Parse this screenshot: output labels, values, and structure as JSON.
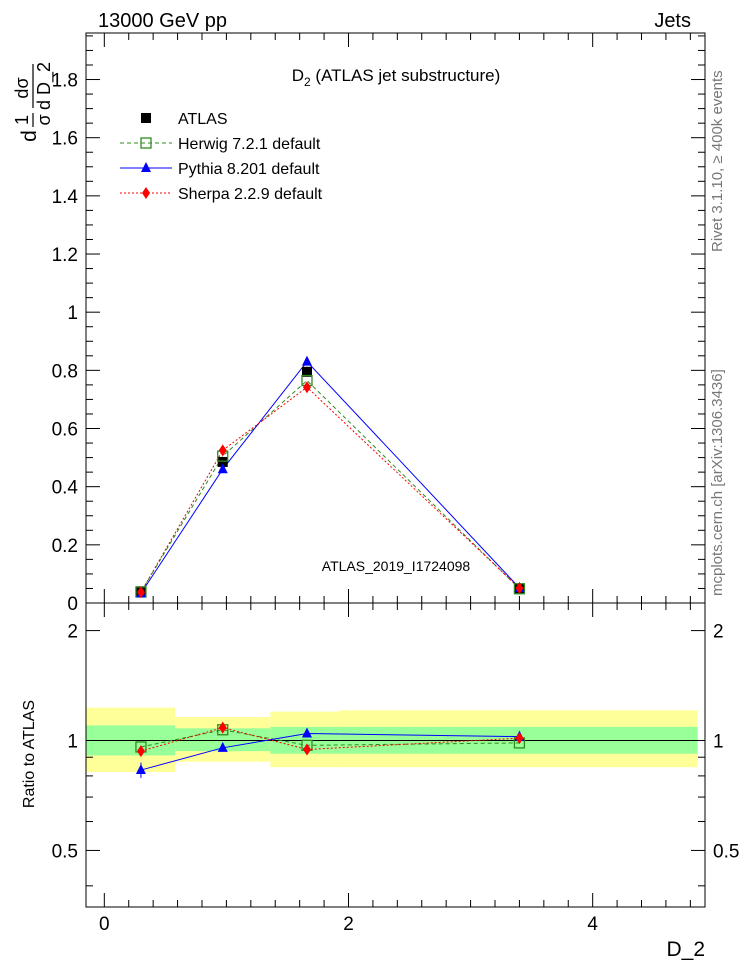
{
  "header": {
    "left": "13000 GeV pp",
    "right": "Jets"
  },
  "side_notes": {
    "rivet": "Rivet 3.1.10, ≥ 400k events",
    "mcplots": "mcplots.cern.ch [arXiv:1306.3436]"
  },
  "colors": {
    "atlas": "#000000",
    "herwig": "#2e8b1e",
    "pythia": "#0000ff",
    "sherpa": "#ff0000",
    "band_inner": "#99ff99",
    "band_outer": "#ffff99"
  },
  "chart_data": [
    {
      "type": "line",
      "title": "D_2 (ATLAS jet substructure)",
      "title_main": "D",
      "title_sub": "2",
      "title_rest": " (ATLAS jet substructure)",
      "ylabel": "1/σ dσ/d D_2",
      "ylabel_parts": {
        "frac1_num": "1",
        "frac1_den": "σ",
        "frac2_num": "dσ",
        "frac2_den": "d D_2",
        "lead": "d"
      },
      "xlabel": "D_2",
      "xlim": [
        -0.15,
        4.92
      ],
      "ylim": [
        0,
        1.96
      ],
      "yticks": [
        0,
        0.2,
        0.4,
        0.6,
        0.8,
        1,
        1.2,
        1.4,
        1.6,
        1.8
      ],
      "ytick_labels": [
        "0",
        "0.2",
        "0.4",
        "0.6",
        "0.8",
        "1",
        "1.2",
        "1.4",
        "1.6",
        "1.8"
      ],
      "watermark": "ATLAS_2019_I1724098",
      "legend_position": "top-left",
      "x": [
        0.3,
        0.97,
        1.66,
        3.4
      ],
      "series": [
        {
          "name": "ATLAS",
          "values": [
            0.04,
            0.485,
            0.795,
            0.05
          ]
        },
        {
          "name": "Herwig 7.2.1 default",
          "values": [
            0.038,
            0.505,
            0.765,
            0.049
          ]
        },
        {
          "name": "Pythia 8.201 default",
          "values": [
            0.033,
            0.46,
            0.83,
            0.052
          ]
        },
        {
          "name": "Sherpa 2.2.9 default",
          "values": [
            0.037,
            0.525,
            0.742,
            0.051
          ]
        }
      ],
      "errors": {
        "Pythia 8.201 default": [
          0.003,
          0.005,
          0.004,
          0.001
        ]
      }
    },
    {
      "type": "line",
      "ylabel": "Ratio to ATLAS",
      "xlim": [
        -0.15,
        4.92
      ],
      "ylim": [
        0.35,
        2.38
      ],
      "yticks": [
        0.5,
        1,
        2
      ],
      "ytick_labels": [
        "0.5",
        "1",
        "2"
      ],
      "xticks": [
        0,
        2,
        4
      ],
      "xtick_labels": [
        "0",
        "2",
        "4"
      ],
      "x": [
        0.3,
        0.97,
        1.66,
        3.4
      ],
      "series": [
        {
          "name": "Herwig 7.2.1 default",
          "values": [
            0.96,
            1.07,
            0.97,
            0.985
          ]
        },
        {
          "name": "Pythia 8.201 default",
          "values": [
            0.83,
            0.955,
            1.045,
            1.025
          ]
        },
        {
          "name": "Sherpa 2.2.9 default",
          "values": [
            0.935,
            1.085,
            0.945,
            1.015
          ]
        }
      ],
      "ratio_errors": {
        "Pythia 8.201 default": [
          0.04,
          0.01,
          0.005,
          0.005
        ]
      },
      "bands": [
        {
          "x0": -0.15,
          "x1": 0.58,
          "inner": [
            0.91,
            1.1
          ],
          "outer": [
            0.82,
            1.23
          ]
        },
        {
          "x0": 0.58,
          "x1": 1.36,
          "inner": [
            0.935,
            1.08
          ],
          "outer": [
            0.875,
            1.16
          ]
        },
        {
          "x0": 1.36,
          "x1": 1.93,
          "inner": [
            0.92,
            1.09
          ],
          "outer": [
            0.845,
            1.2
          ]
        },
        {
          "x0": 1.93,
          "x1": 4.86,
          "inner": [
            0.92,
            1.09
          ],
          "outer": [
            0.845,
            1.21
          ]
        }
      ]
    }
  ]
}
